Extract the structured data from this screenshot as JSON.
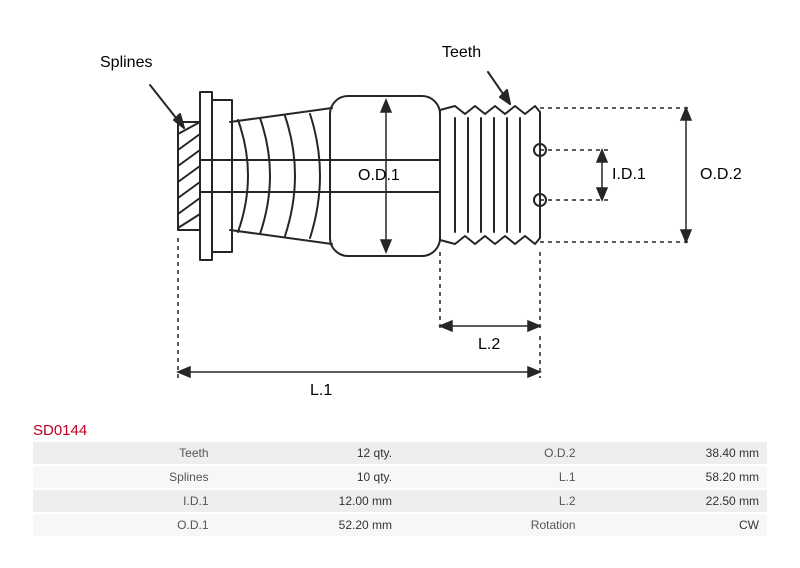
{
  "part_code": "SD0144",
  "diagram": {
    "labels": {
      "splines": "Splines",
      "teeth": "Teeth",
      "od1": "O.D.1",
      "od2": "O.D.2",
      "id1": "I.D.1",
      "l1": "L.1",
      "l2": "L.2"
    },
    "stroke": "#262626",
    "stroke_width": 2,
    "dash": "4,4",
    "label_fontsize": 16
  },
  "specs": [
    {
      "k1": "Teeth",
      "v1": "12 qty.",
      "k2": "O.D.2",
      "v2": "38.40 mm"
    },
    {
      "k1": "Splines",
      "v1": "10 qty.",
      "k2": "L.1",
      "v2": "58.20 mm"
    },
    {
      "k1": "I.D.1",
      "v1": "12.00 mm",
      "k2": "L.2",
      "v2": "22.50 mm"
    },
    {
      "k1": "O.D.1",
      "v1": "52.20 mm",
      "k2": "Rotation",
      "v2": "CW"
    }
  ]
}
